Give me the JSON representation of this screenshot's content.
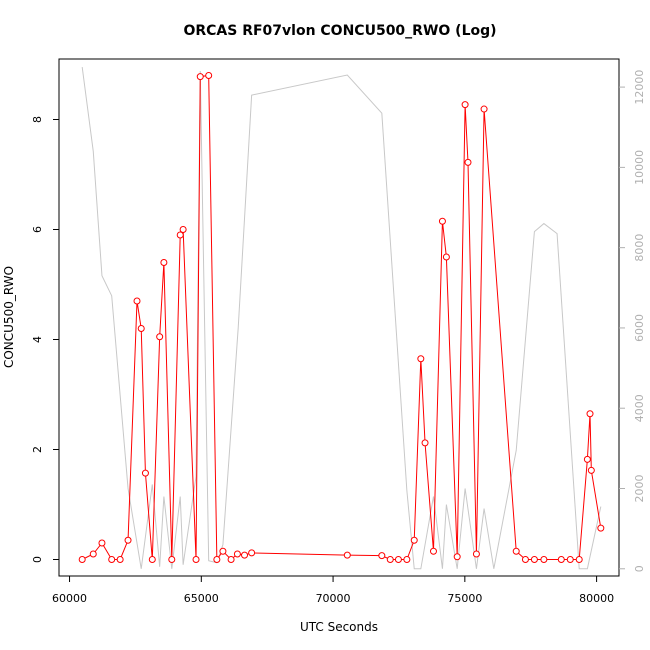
{
  "chart_data": {
    "type": "line",
    "title": "ORCAS RF07vlon CONCU500_RWO (Log)",
    "xlabel": "UTC Seconds",
    "ylabel": "CONCU500_RWO",
    "xlim": [
      59600,
      80850
    ],
    "ylim": [
      -0.3,
      9.1
    ],
    "y2lim": [
      -180,
      12700
    ],
    "x_ticks": [
      60000,
      65000,
      70000,
      75000,
      80000
    ],
    "y_ticks": [
      0,
      2,
      4,
      6,
      8
    ],
    "y2_ticks": [
      0,
      2000,
      4000,
      6000,
      8000,
      10000,
      12000
    ],
    "grid": false,
    "series": [
      {
        "role": "primary",
        "color": "#ff0000",
        "marker": "open-circle",
        "x": [
          60480,
          60900,
          61230,
          61600,
          61920,
          62220,
          62560,
          62720,
          62880,
          63140,
          63420,
          63580,
          63880,
          64200,
          64310,
          64800,
          64960,
          65280,
          65590,
          65820,
          66130,
          66370,
          66640,
          66910,
          70540,
          71850,
          72170,
          72480,
          72800,
          73080,
          73330,
          73490,
          73810,
          74150,
          74300,
          74710,
          75010,
          75120,
          75440,
          75730,
          76950,
          77300,
          77640,
          78000,
          78660,
          79000,
          79340,
          79650,
          79750,
          79800,
          80160
        ],
        "y": [
          0.0,
          0.1,
          0.3,
          0.0,
          0.0,
          0.35,
          4.7,
          4.2,
          1.57,
          0.0,
          4.05,
          5.4,
          0.0,
          5.9,
          6.0,
          0.0,
          8.78,
          8.8,
          0.0,
          0.15,
          0.0,
          0.1,
          0.08,
          0.12,
          0.08,
          0.07,
          0.0,
          0.0,
          0.0,
          0.35,
          3.65,
          2.12,
          0.15,
          6.15,
          5.5,
          0.05,
          8.27,
          7.22,
          0.1,
          8.19,
          0.15,
          0.0,
          0.0,
          0.0,
          0.0,
          0.0,
          0.0,
          1.82,
          2.65,
          1.62,
          0.57
        ]
      },
      {
        "role": "secondary",
        "color": "#c8c8c8",
        "marker": "none",
        "x": [
          60480,
          60900,
          61230,
          61600,
          62220,
          62720,
          63140,
          63420,
          63580,
          63880,
          64200,
          64310,
          64800,
          64960,
          65280,
          65590,
          65820,
          66400,
          66910,
          70540,
          71850,
          72800,
          73080,
          73330,
          73810,
          74150,
          74300,
          74710,
          75010,
          75440,
          75730,
          76100,
          76950,
          77640,
          78000,
          78500,
          79340,
          79650,
          80160
        ],
        "y": [
          12500,
          10400,
          7300,
          6800,
          2000,
          0,
          2100,
          50,
          1800,
          0,
          1800,
          100,
          2300,
          12400,
          200,
          150,
          600,
          6000,
          11800,
          12300,
          11350,
          1950,
          0,
          0,
          1800,
          0,
          1600,
          0,
          2000,
          0,
          1500,
          0,
          2950,
          8400,
          8600,
          8350,
          0,
          0,
          1550
        ]
      }
    ]
  }
}
